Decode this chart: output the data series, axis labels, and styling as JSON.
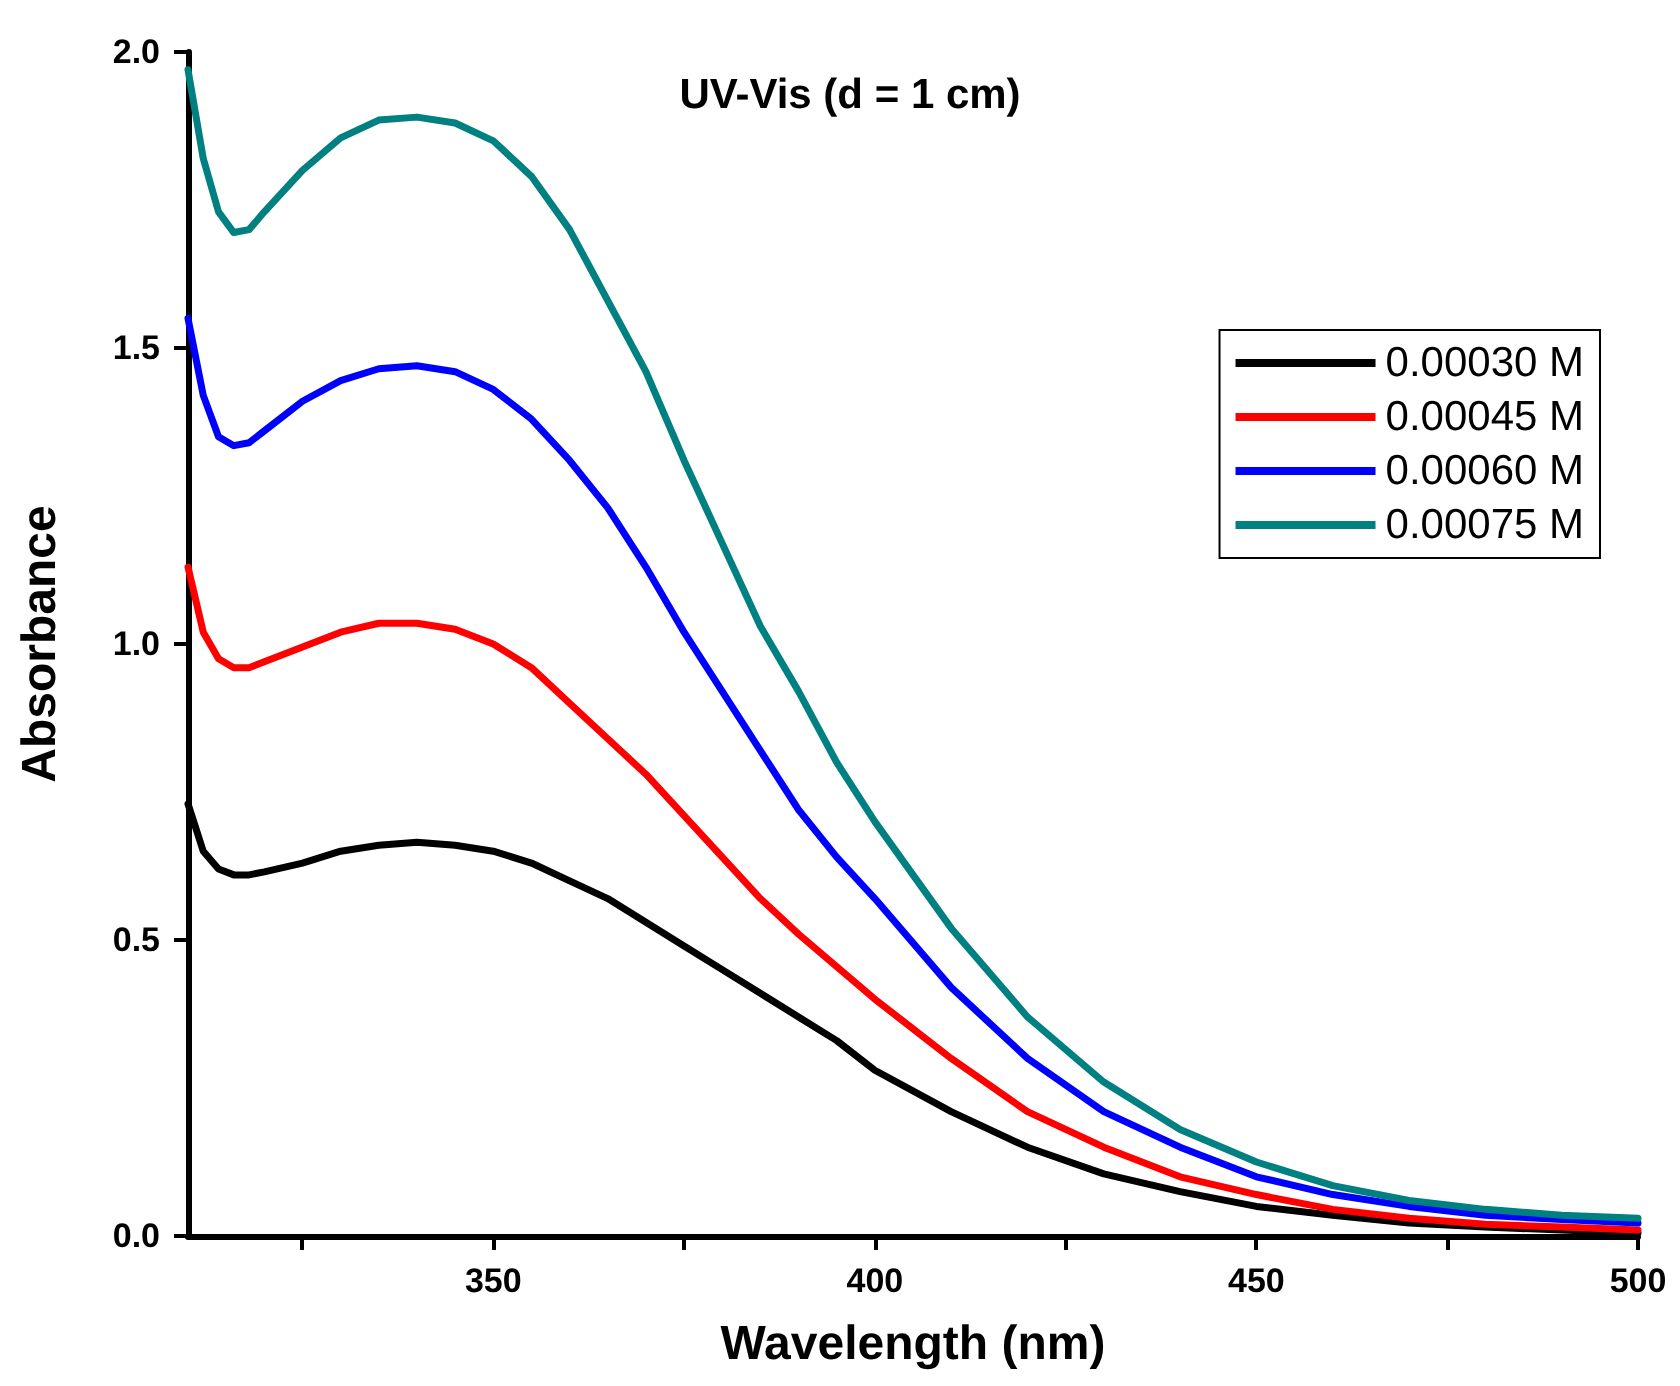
{
  "chart_data": {
    "type": "line",
    "title": "UV-Vis (d = 1 cm)",
    "xlabel": "Wavelength (nm)",
    "ylabel": "Absorbance",
    "x": [
      310,
      312,
      314,
      316,
      318,
      320,
      325,
      330,
      335,
      340,
      345,
      350,
      355,
      360,
      365,
      370,
      375,
      380,
      385,
      390,
      395,
      400,
      410,
      420,
      430,
      440,
      450,
      460,
      470,
      480,
      490,
      500
    ],
    "xlim": [
      310,
      500
    ],
    "xticks": [
      {
        "value": 325,
        "label": null
      },
      350,
      {
        "value": 375,
        "label": null
      },
      400,
      {
        "value": 425,
        "label": null
      },
      450,
      {
        "value": 475,
        "label": null
      },
      500
    ],
    "ylim": [
      0,
      2
    ],
    "yticks": [
      {
        "value": 0,
        "label": "0.0"
      },
      0.5,
      {
        "value": 1,
        "label": "1.0"
      },
      1.5,
      {
        "value": 2,
        "label": "2.0"
      }
    ],
    "grid": false,
    "legend": "top right",
    "marker": "none",
    "line_style": "solid",
    "series": [
      {
        "name": "0.00030 M",
        "color": "#000000",
        "values": [
          0.73,
          0.65,
          0.62,
          0.61,
          0.61,
          0.615,
          0.63,
          0.65,
          0.66,
          0.665,
          0.66,
          0.65,
          0.63,
          0.6,
          0.57,
          0.53,
          0.49,
          0.45,
          0.41,
          0.37,
          0.33,
          0.28,
          0.21,
          0.15,
          0.105,
          0.075,
          0.05,
          0.035,
          0.022,
          0.015,
          0.01,
          0.005
        ]
      },
      {
        "name": "0.00045 M",
        "color": "#ff0000",
        "values": [
          1.13,
          1.02,
          0.975,
          0.96,
          0.96,
          0.97,
          0.995,
          1.02,
          1.035,
          1.035,
          1.025,
          1.0,
          0.96,
          0.9,
          0.84,
          0.78,
          0.71,
          0.64,
          0.57,
          0.51,
          0.455,
          0.4,
          0.3,
          0.21,
          0.15,
          0.1,
          0.07,
          0.045,
          0.03,
          0.02,
          0.015,
          0.01
        ]
      },
      {
        "name": "0.00060 M",
        "color": "#0000ff",
        "values": [
          1.55,
          1.42,
          1.35,
          1.335,
          1.34,
          1.36,
          1.41,
          1.445,
          1.465,
          1.47,
          1.46,
          1.43,
          1.38,
          1.31,
          1.23,
          1.13,
          1.02,
          0.92,
          0.82,
          0.72,
          0.64,
          0.57,
          0.42,
          0.3,
          0.21,
          0.15,
          0.1,
          0.07,
          0.05,
          0.035,
          0.028,
          0.022
        ]
      },
      {
        "name": "0.00075 M",
        "color": "#008080",
        "values": [
          1.97,
          1.82,
          1.73,
          1.695,
          1.7,
          1.73,
          1.8,
          1.855,
          1.885,
          1.89,
          1.88,
          1.85,
          1.79,
          1.7,
          1.58,
          1.46,
          1.31,
          1.17,
          1.03,
          0.92,
          0.8,
          0.7,
          0.52,
          0.37,
          0.26,
          0.18,
          0.125,
          0.085,
          0.06,
          0.045,
          0.035,
          0.03
        ]
      }
    ]
  }
}
